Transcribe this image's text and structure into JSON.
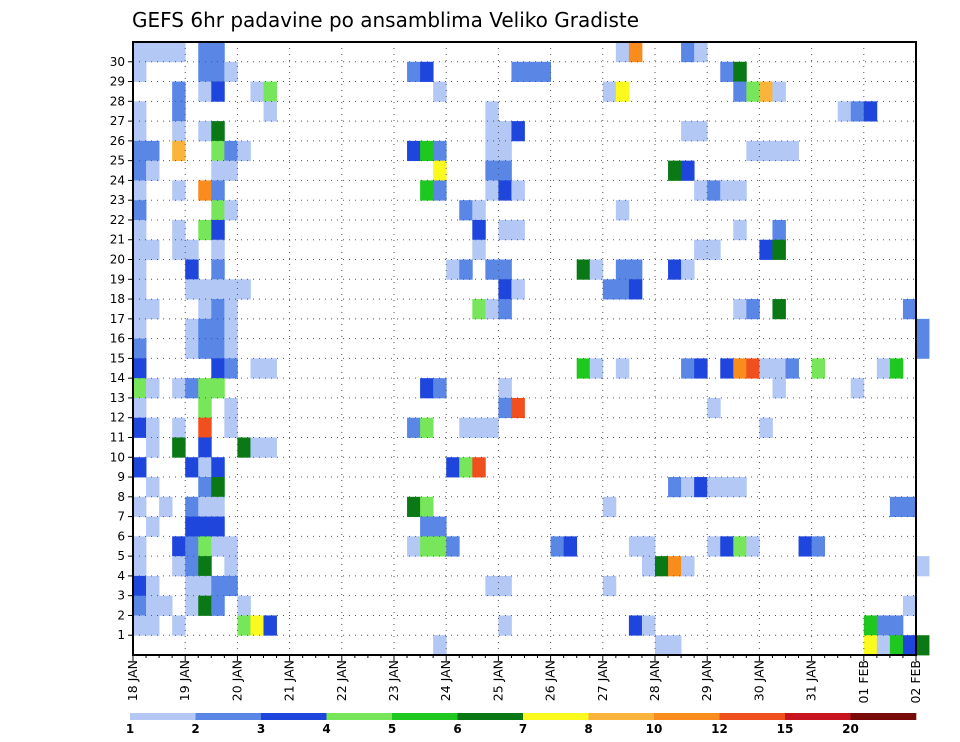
{
  "chart_data": {
    "type": "heatmap",
    "title": "GEFS 6hr padavine po ansamblima Veliko Gradiste",
    "y_categories": [
      "1",
      "2",
      "3",
      "4",
      "5",
      "6",
      "7",
      "8",
      "9",
      "10",
      "11",
      "12",
      "13",
      "14",
      "15",
      "16",
      "17",
      "18",
      "19",
      "20",
      "21",
      "22",
      "23",
      "24",
      "25",
      "26",
      "27",
      "28",
      "29",
      "30"
    ],
    "x_ticks": [
      "18 JAN",
      "19 JAN",
      "20 JAN",
      "21 JAN",
      "22 JAN",
      "23 JAN",
      "24 JAN",
      "25 JAN",
      "26 JAN",
      "27 JAN",
      "28 JAN",
      "29 JAN",
      "30 JAN",
      "31 JAN",
      "01 FEB",
      "02 FEB"
    ],
    "x_range": [
      "18 JAN 00Z",
      "02 FEB 00Z"
    ],
    "time_step_hours": 6,
    "colorbar": {
      "ticks": [
        "1",
        "2",
        "3",
        "4",
        "5",
        "6",
        "7",
        "8",
        "10",
        "12",
        "15",
        "20"
      ],
      "bins": [
        {
          "from": 1,
          "to": 2,
          "color": "#b4c8f5"
        },
        {
          "from": 2,
          "to": 3,
          "color": "#5a87e6"
        },
        {
          "from": 3,
          "to": 4,
          "color": "#1e46dc"
        },
        {
          "from": 4,
          "to": 5,
          "color": "#78e65a"
        },
        {
          "from": 5,
          "to": 6,
          "color": "#1ec81e"
        },
        {
          "from": 6,
          "to": 7,
          "color": "#0a7814"
        },
        {
          "from": 7,
          "to": 8,
          "color": "#fafa1e"
        },
        {
          "from": 8,
          "to": 10,
          "color": "#fab43c"
        },
        {
          "from": 10,
          "to": 12,
          "color": "#fa8c1e"
        },
        {
          "from": 12,
          "to": 15,
          "color": "#f0501e"
        },
        {
          "from": 15,
          "to": 20,
          "color": "#c8141e"
        },
        {
          "from": 20,
          "to": 30,
          "color": "#780a0a"
        }
      ]
    },
    "cells_format": "[member, time_step_index, colorbar_bin_index]",
    "cells": [
      [
        30,
        0,
        0
      ],
      [
        30,
        1,
        0
      ],
      [
        30,
        2,
        0
      ],
      [
        30,
        3,
        0
      ],
      [
        30,
        5,
        1
      ],
      [
        30,
        6,
        1
      ],
      [
        30,
        37,
        0
      ],
      [
        30,
        38,
        8
      ],
      [
        30,
        42,
        1
      ],
      [
        30,
        43,
        0
      ],
      [
        29,
        0,
        0
      ],
      [
        29,
        5,
        1
      ],
      [
        29,
        6,
        1
      ],
      [
        29,
        7,
        0
      ],
      [
        29,
        21,
        1
      ],
      [
        29,
        22,
        2
      ],
      [
        29,
        29,
        1
      ],
      [
        29,
        30,
        1
      ],
      [
        29,
        31,
        1
      ],
      [
        29,
        45,
        1
      ],
      [
        29,
        46,
        5
      ],
      [
        28,
        3,
        1
      ],
      [
        28,
        5,
        0
      ],
      [
        28,
        6,
        2
      ],
      [
        28,
        9,
        0
      ],
      [
        28,
        10,
        3
      ],
      [
        28,
        23,
        0
      ],
      [
        28,
        36,
        0
      ],
      [
        28,
        37,
        6
      ],
      [
        28,
        46,
        1
      ],
      [
        28,
        47,
        3
      ],
      [
        28,
        48,
        7
      ],
      [
        28,
        49,
        0
      ],
      [
        27,
        0,
        0
      ],
      [
        27,
        3,
        1
      ],
      [
        27,
        10,
        0
      ],
      [
        27,
        27,
        0
      ],
      [
        27,
        54,
        0
      ],
      [
        27,
        55,
        1
      ],
      [
        27,
        56,
        2
      ],
      [
        26,
        0,
        0
      ],
      [
        26,
        3,
        0
      ],
      [
        26,
        5,
        0
      ],
      [
        26,
        6,
        5
      ],
      [
        26,
        27,
        0
      ],
      [
        26,
        28,
        0
      ],
      [
        26,
        29,
        2
      ],
      [
        26,
        42,
        0
      ],
      [
        26,
        43,
        0
      ],
      [
        25,
        0,
        1
      ],
      [
        25,
        1,
        1
      ],
      [
        25,
        3,
        7
      ],
      [
        25,
        6,
        3
      ],
      [
        25,
        7,
        1
      ],
      [
        25,
        8,
        0
      ],
      [
        25,
        21,
        2
      ],
      [
        25,
        22,
        4
      ],
      [
        25,
        23,
        1
      ],
      [
        25,
        27,
        0
      ],
      [
        25,
        28,
        0
      ],
      [
        25,
        47,
        0
      ],
      [
        25,
        48,
        0
      ],
      [
        25,
        49,
        0
      ],
      [
        25,
        50,
        0
      ],
      [
        24,
        0,
        1
      ],
      [
        24,
        1,
        0
      ],
      [
        24,
        6,
        0
      ],
      [
        24,
        7,
        0
      ],
      [
        24,
        23,
        6
      ],
      [
        24,
        27,
        1
      ],
      [
        24,
        28,
        1
      ],
      [
        24,
        41,
        5
      ],
      [
        24,
        42,
        2
      ],
      [
        23,
        0,
        0
      ],
      [
        23,
        3,
        0
      ],
      [
        23,
        5,
        8
      ],
      [
        23,
        6,
        1
      ],
      [
        23,
        22,
        4
      ],
      [
        23,
        23,
        1
      ],
      [
        23,
        27,
        0
      ],
      [
        23,
        28,
        2
      ],
      [
        23,
        29,
        0
      ],
      [
        23,
        43,
        0
      ],
      [
        23,
        44,
        1
      ],
      [
        23,
        45,
        0
      ],
      [
        23,
        46,
        0
      ],
      [
        22,
        0,
        1
      ],
      [
        22,
        6,
        3
      ],
      [
        22,
        7,
        0
      ],
      [
        22,
        25,
        1
      ],
      [
        22,
        26,
        0
      ],
      [
        22,
        37,
        0
      ],
      [
        21,
        0,
        0
      ],
      [
        21,
        3,
        0
      ],
      [
        21,
        5,
        3
      ],
      [
        21,
        6,
        2
      ],
      [
        21,
        26,
        2
      ],
      [
        21,
        28,
        0
      ],
      [
        21,
        29,
        0
      ],
      [
        21,
        46,
        0
      ],
      [
        21,
        49,
        1
      ],
      [
        20,
        0,
        0
      ],
      [
        20,
        1,
        0
      ],
      [
        20,
        3,
        0
      ],
      [
        20,
        4,
        0
      ],
      [
        20,
        6,
        0
      ],
      [
        20,
        26,
        0
      ],
      [
        20,
        43,
        0
      ],
      [
        20,
        44,
        0
      ],
      [
        20,
        48,
        2
      ],
      [
        20,
        49,
        5
      ],
      [
        19,
        0,
        0
      ],
      [
        19,
        4,
        2
      ],
      [
        19,
        6,
        1
      ],
      [
        19,
        24,
        0
      ],
      [
        19,
        25,
        1
      ],
      [
        19,
        27,
        1
      ],
      [
        19,
        28,
        1
      ],
      [
        19,
        34,
        5
      ],
      [
        19,
        35,
        0
      ],
      [
        19,
        37,
        1
      ],
      [
        19,
        38,
        1
      ],
      [
        19,
        41,
        2
      ],
      [
        19,
        42,
        0
      ],
      [
        18,
        0,
        0
      ],
      [
        18,
        4,
        0
      ],
      [
        18,
        5,
        0
      ],
      [
        18,
        6,
        0
      ],
      [
        18,
        7,
        0
      ],
      [
        18,
        8,
        0
      ],
      [
        18,
        28,
        2
      ],
      [
        18,
        29,
        0
      ],
      [
        18,
        36,
        1
      ],
      [
        18,
        37,
        1
      ],
      [
        18,
        38,
        2
      ],
      [
        17,
        0,
        0
      ],
      [
        17,
        1,
        0
      ],
      [
        17,
        5,
        0
      ],
      [
        17,
        6,
        1
      ],
      [
        17,
        7,
        0
      ],
      [
        17,
        26,
        3
      ],
      [
        17,
        27,
        0
      ],
      [
        17,
        28,
        1
      ],
      [
        17,
        46,
        0
      ],
      [
        17,
        47,
        1
      ],
      [
        17,
        49,
        5
      ],
      [
        17,
        59,
        1
      ],
      [
        16,
        0,
        0
      ],
      [
        16,
        4,
        0
      ],
      [
        16,
        5,
        1
      ],
      [
        16,
        6,
        1
      ],
      [
        16,
        7,
        0
      ],
      [
        16,
        60,
        1
      ],
      [
        15,
        0,
        1
      ],
      [
        15,
        4,
        0
      ],
      [
        15,
        5,
        1
      ],
      [
        15,
        6,
        1
      ],
      [
        15,
        7,
        0
      ],
      [
        15,
        60,
        1
      ],
      [
        14,
        0,
        2
      ],
      [
        14,
        6,
        2
      ],
      [
        14,
        7,
        1
      ],
      [
        14,
        9,
        0
      ],
      [
        14,
        10,
        0
      ],
      [
        14,
        34,
        4
      ],
      [
        14,
        35,
        0
      ],
      [
        14,
        37,
        0
      ],
      [
        14,
        42,
        1
      ],
      [
        14,
        43,
        2
      ],
      [
        14,
        45,
        2
      ],
      [
        14,
        46,
        8
      ],
      [
        14,
        47,
        9
      ],
      [
        14,
        48,
        0
      ],
      [
        14,
        49,
        0
      ],
      [
        14,
        50,
        1
      ],
      [
        14,
        52,
        3
      ],
      [
        14,
        57,
        0
      ],
      [
        14,
        58,
        4
      ],
      [
        13,
        0,
        3
      ],
      [
        13,
        1,
        0
      ],
      [
        13,
        3,
        0
      ],
      [
        13,
        4,
        1
      ],
      [
        13,
        5,
        3
      ],
      [
        13,
        6,
        3
      ],
      [
        13,
        22,
        2
      ],
      [
        13,
        23,
        1
      ],
      [
        13,
        28,
        0
      ],
      [
        13,
        49,
        0
      ],
      [
        13,
        55,
        0
      ],
      [
        12,
        0,
        0
      ],
      [
        12,
        5,
        3
      ],
      [
        12,
        7,
        0
      ],
      [
        12,
        28,
        1
      ],
      [
        12,
        29,
        9
      ],
      [
        12,
        44,
        0
      ],
      [
        11,
        0,
        2
      ],
      [
        11,
        1,
        0
      ],
      [
        11,
        3,
        0
      ],
      [
        11,
        5,
        9
      ],
      [
        11,
        7,
        0
      ],
      [
        11,
        21,
        1
      ],
      [
        11,
        22,
        3
      ],
      [
        11,
        25,
        0
      ],
      [
        11,
        26,
        0
      ],
      [
        11,
        27,
        0
      ],
      [
        11,
        48,
        0
      ],
      [
        10,
        1,
        0
      ],
      [
        10,
        3,
        5
      ],
      [
        10,
        5,
        2
      ],
      [
        10,
        8,
        5
      ],
      [
        10,
        9,
        0
      ],
      [
        10,
        10,
        0
      ],
      [
        9,
        0,
        2
      ],
      [
        9,
        4,
        2
      ],
      [
        9,
        5,
        0
      ],
      [
        9,
        6,
        2
      ],
      [
        9,
        24,
        2
      ],
      [
        9,
        25,
        3
      ],
      [
        9,
        26,
        9
      ],
      [
        8,
        1,
        0
      ],
      [
        8,
        5,
        1
      ],
      [
        8,
        6,
        5
      ],
      [
        8,
        41,
        1
      ],
      [
        8,
        42,
        0
      ],
      [
        8,
        43,
        2
      ],
      [
        8,
        44,
        0
      ],
      [
        8,
        45,
        0
      ],
      [
        8,
        46,
        0
      ],
      [
        7,
        0,
        0
      ],
      [
        7,
        2,
        0
      ],
      [
        7,
        4,
        1
      ],
      [
        7,
        5,
        0
      ],
      [
        7,
        6,
        0
      ],
      [
        7,
        21,
        5
      ],
      [
        7,
        22,
        3
      ],
      [
        7,
        36,
        0
      ],
      [
        7,
        58,
        1
      ],
      [
        7,
        59,
        1
      ],
      [
        6,
        1,
        0
      ],
      [
        6,
        4,
        2
      ],
      [
        6,
        5,
        2
      ],
      [
        6,
        6,
        2
      ],
      [
        6,
        22,
        1
      ],
      [
        6,
        23,
        1
      ],
      [
        5,
        0,
        0
      ],
      [
        5,
        3,
        2
      ],
      [
        5,
        4,
        1
      ],
      [
        5,
        5,
        3
      ],
      [
        5,
        6,
        0
      ],
      [
        5,
        7,
        0
      ],
      [
        5,
        21,
        0
      ],
      [
        5,
        22,
        3
      ],
      [
        5,
        23,
        3
      ],
      [
        5,
        24,
        1
      ],
      [
        5,
        32,
        1
      ],
      [
        5,
        33,
        2
      ],
      [
        5,
        38,
        0
      ],
      [
        5,
        39,
        0
      ],
      [
        5,
        44,
        0
      ],
      [
        5,
        45,
        2
      ],
      [
        5,
        46,
        3
      ],
      [
        5,
        47,
        0
      ],
      [
        5,
        51,
        2
      ],
      [
        5,
        52,
        1
      ],
      [
        4,
        0,
        0
      ],
      [
        4,
        3,
        0
      ],
      [
        4,
        4,
        1
      ],
      [
        4,
        5,
        5
      ],
      [
        4,
        7,
        0
      ],
      [
        4,
        39,
        0
      ],
      [
        4,
        40,
        5
      ],
      [
        4,
        41,
        8
      ],
      [
        4,
        42,
        0
      ],
      [
        4,
        60,
        0
      ],
      [
        3,
        0,
        2
      ],
      [
        3,
        1,
        0
      ],
      [
        3,
        4,
        0
      ],
      [
        3,
        5,
        0
      ],
      [
        3,
        6,
        1
      ],
      [
        3,
        7,
        1
      ],
      [
        3,
        27,
        0
      ],
      [
        3,
        28,
        0
      ],
      [
        3,
        36,
        0
      ],
      [
        2,
        0,
        1
      ],
      [
        2,
        1,
        0
      ],
      [
        2,
        2,
        0
      ],
      [
        2,
        4,
        0
      ],
      [
        2,
        5,
        5
      ],
      [
        2,
        6,
        1
      ],
      [
        2,
        8,
        0
      ],
      [
        2,
        59,
        0
      ],
      [
        1,
        0,
        0
      ],
      [
        1,
        1,
        0
      ],
      [
        1,
        3,
        0
      ],
      [
        1,
        8,
        3
      ],
      [
        1,
        9,
        6
      ],
      [
        1,
        10,
        2
      ],
      [
        1,
        28,
        0
      ],
      [
        1,
        38,
        2
      ],
      [
        1,
        39,
        0
      ],
      [
        1,
        56,
        4
      ],
      [
        1,
        57,
        1
      ],
      [
        1,
        58,
        1
      ],
      [
        0,
        23,
        0
      ],
      [
        0,
        40,
        0
      ],
      [
        0,
        41,
        0
      ],
      [
        0,
        56,
        6
      ],
      [
        0,
        57,
        0
      ],
      [
        0,
        58,
        4
      ],
      [
        0,
        59,
        2
      ],
      [
        0,
        60,
        5
      ]
    ]
  }
}
